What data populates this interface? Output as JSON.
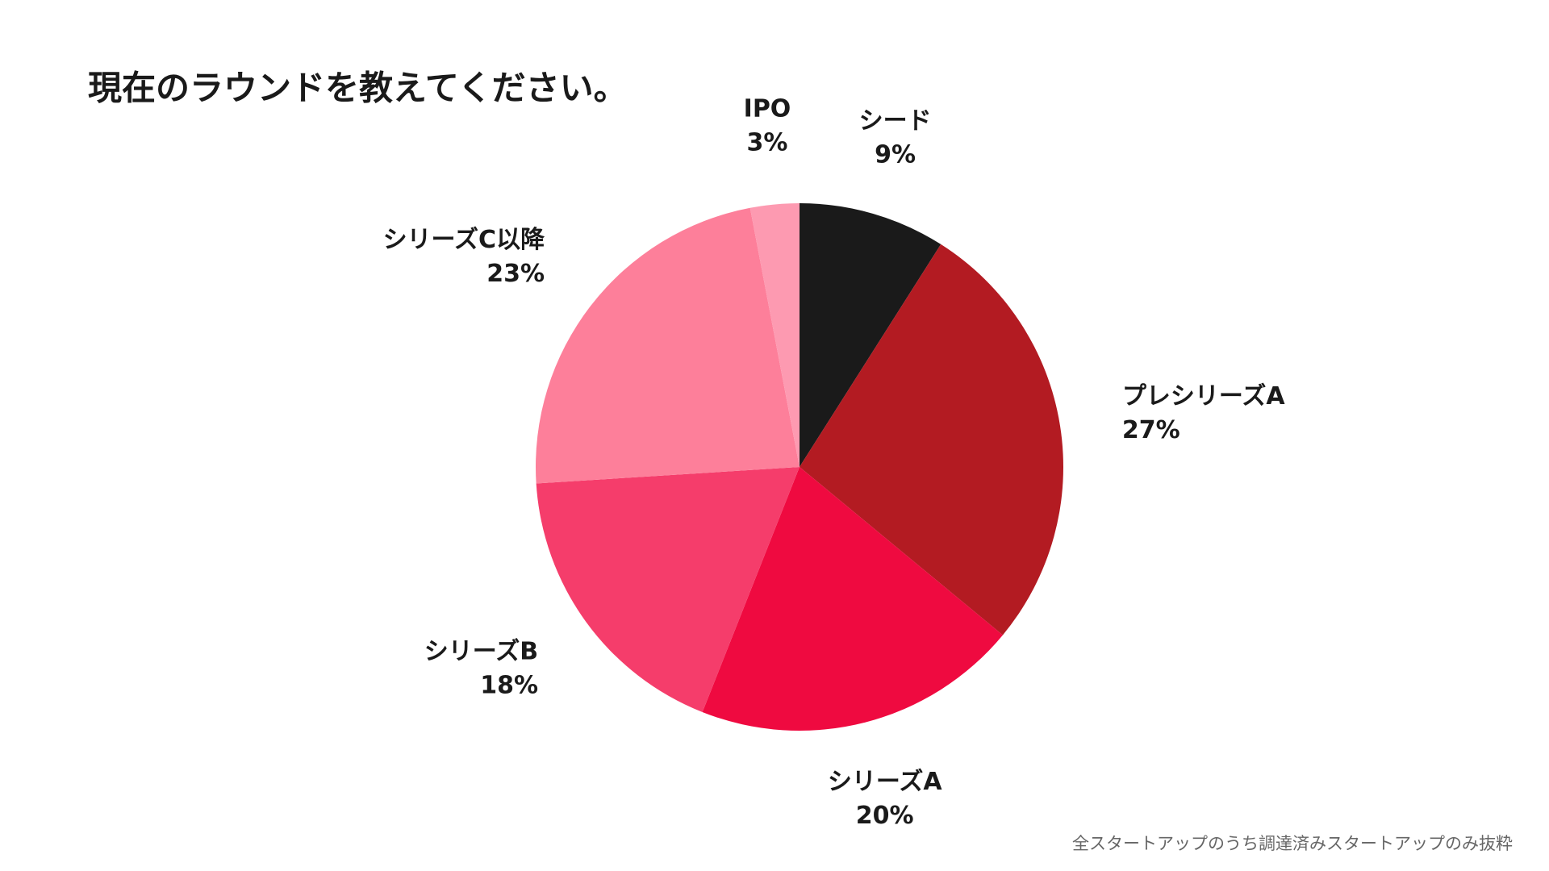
{
  "chart_data": {
    "type": "pie",
    "title": "現在のラウンドを教えてください。",
    "categories": [
      "シード",
      "プレシリーズA",
      "シリーズA",
      "シリーズB",
      "シリーズC以降",
      "IPO"
    ],
    "values": [
      9,
      27,
      20,
      18,
      23,
      3
    ],
    "value_labels": [
      "9%",
      "27%",
      "20%",
      "18%",
      "23%",
      "3%"
    ],
    "colors": [
      "#1a1a1a",
      "#b31b22",
      "#ef0a40",
      "#f53d6b",
      "#fd7f9a",
      "#fd9ab1"
    ],
    "note": "全スタートアップのうち調達済みスタートアップのみ抜粋"
  }
}
